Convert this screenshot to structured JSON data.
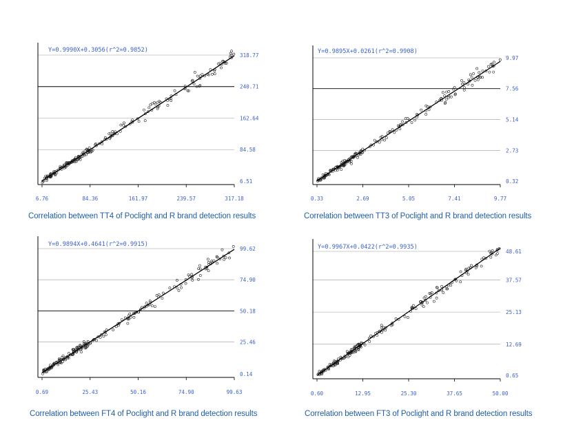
{
  "colors": {
    "label": "#3a5fcd",
    "caption": "#1f5ea8",
    "axis": "#000000",
    "grid": "#9a9a9a",
    "major_grid": "#000000"
  },
  "chart_data": [
    {
      "type": "scatter",
      "title": "",
      "caption": "Correlation between TT4 of Poclight and R brand detection results",
      "equation": "Y=0.9990X+0.3056(r^2=0.9852)",
      "slope": 0.999,
      "intercept": 0.3056,
      "x_ticks": [
        "6.76",
        "84.36",
        "161.97",
        "239.57",
        "317.18"
      ],
      "y_ticks": [
        "6.51",
        "84.58",
        "162.64",
        "240.71",
        "318.77"
      ],
      "xlim": [
        6.76,
        317.18
      ],
      "ylim": [
        6.51,
        318.77
      ],
      "major_grid_y": "240.71",
      "grid": true,
      "n_points": 210
    },
    {
      "type": "scatter",
      "title": "",
      "caption": "Correlation between TT3 of Poclight and R brand detection results",
      "equation": "Y=0.9895X+0.0261(r^2=0.9908)",
      "slope": 0.9895,
      "intercept": 0.0261,
      "x_ticks": [
        "0.33",
        "2.69",
        "5.05",
        "7.41",
        "9.77"
      ],
      "y_ticks": [
        "0.32",
        "2.73",
        "5.14",
        "7.56",
        "9.97"
      ],
      "xlim": [
        0.33,
        9.77
      ],
      "ylim": [
        0.32,
        9.97
      ],
      "major_grid_y": "7.56",
      "grid": true,
      "n_points": 200
    },
    {
      "type": "scatter",
      "title": "",
      "caption": "Correlation between FT4 of Poclight and R brand detection results",
      "equation": "Y=0.9894X+0.4641(r^2=0.9915)",
      "slope": 0.9894,
      "intercept": 0.4641,
      "x_ticks": [
        "0.69",
        "25.43",
        "50.16",
        "74.90",
        "99.63"
      ],
      "y_ticks": [
        "0.14",
        "25.46",
        "50.18",
        "74.90",
        "99.62"
      ],
      "xlim": [
        0.69,
        99.63
      ],
      "ylim": [
        0.14,
        99.62
      ],
      "major_grid_y": "50.18",
      "grid": true,
      "n_points": 200
    },
    {
      "type": "scatter",
      "title": "",
      "caption": "Correlation between FT3 of Poclight and R brand detection results",
      "equation": "Y=0.9967X+0.0422(r^2=0.9935)",
      "slope": 0.9967,
      "intercept": 0.0422,
      "x_ticks": [
        "0.60",
        "12.95",
        "25.30",
        "37.65",
        "50.00"
      ],
      "y_ticks": [
        "0.65",
        "12.69",
        "25.13",
        "37.57",
        "48.61"
      ],
      "xlim": [
        0.6,
        50.0
      ],
      "ylim": [
        0.65,
        48.61
      ],
      "major_grid_y": "",
      "grid": true,
      "n_points": 200
    }
  ]
}
